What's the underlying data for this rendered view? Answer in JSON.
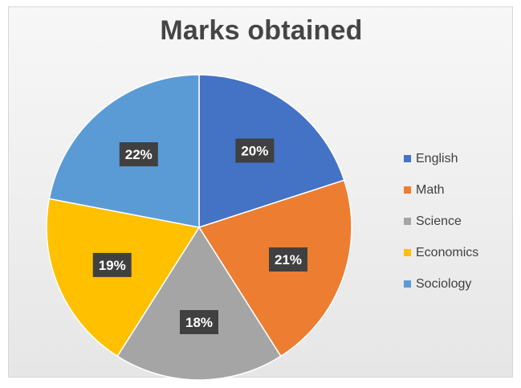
{
  "chart_data": {
    "type": "pie",
    "title": "Marks obtained",
    "categories": [
      "English",
      "Math",
      "Science",
      "Economics",
      "Sociology"
    ],
    "values": [
      20,
      21,
      18,
      19,
      22
    ],
    "data_labels": [
      "20%",
      "21%",
      "18%",
      "19%",
      "22%"
    ],
    "colors": [
      "#4472c4",
      "#ed7d31",
      "#a5a5a5",
      "#ffc000",
      "#5b9bd5"
    ],
    "legend_position": "right",
    "data_label_style": "dark callout boxes with white text"
  }
}
